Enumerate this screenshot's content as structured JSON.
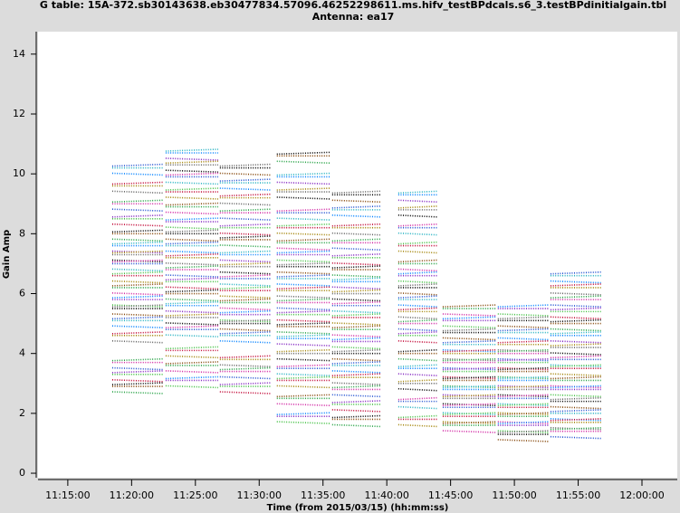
{
  "chart_data": {
    "type": "scatter",
    "title": "G table: 15A-372.sb30143638.eb30477834.57096.46252298611.ms.hifv_testBPdcals.s6_3.testBPdinitialgain.tbl",
    "subtitle": "Antenna: ea17",
    "xlabel": "Time (from 2015/03/15) (hh:mm:ss)",
    "ylabel": "Gain Amp",
    "xlim": [
      40360,
      43366
    ],
    "ylim": [
      -0.15,
      14.75
    ],
    "xticks": [
      {
        "value": 40500,
        "label": "11:15:00"
      },
      {
        "value": 40800,
        "label": "11:20:00"
      },
      {
        "value": 41100,
        "label": "11:25:00"
      },
      {
        "value": 41400,
        "label": "11:30:00"
      },
      {
        "value": 41700,
        "label": "11:35:00"
      },
      {
        "value": 42000,
        "label": "11:40:00"
      },
      {
        "value": 42300,
        "label": "11:45:00"
      },
      {
        "value": 42600,
        "label": "11:50:00"
      },
      {
        "value": 42900,
        "label": "11:55:00"
      },
      {
        "value": 43200,
        "label": "12:00:00"
      }
    ],
    "yticks": [
      0,
      2,
      4,
      6,
      8,
      10,
      12,
      14
    ],
    "colors": [
      "#1f4fd0",
      "#c00030",
      "#20a040",
      "#8020c0",
      "#000000",
      "#20b0c0",
      "#a08000",
      "#d020a0",
      "#40c040",
      "#804000",
      "#0080ff",
      "#606060"
    ],
    "scans": [
      {
        "x": [
          40709,
          40951
        ],
        "levels": [
          10.2,
          9.6,
          9.0,
          8.5,
          8.0,
          7.6,
          7.3,
          7.0,
          6.6,
          6.2,
          5.8,
          5.5,
          5.1,
          4.6,
          3.7,
          3.3,
          2.9
        ]
      },
      {
        "x": [
          40960,
          41207
        ],
        "levels": [
          10.7,
          10.3,
          9.9,
          9.4,
          8.9,
          8.4,
          8.0,
          7.6,
          7.2,
          6.8,
          6.4,
          6.0,
          5.6,
          5.2,
          4.8,
          4.1,
          3.6,
          3.1
        ]
      },
      {
        "x": [
          41215,
          41454
        ],
        "levels": [
          10.2,
          9.7,
          9.2,
          8.7,
          8.2,
          7.8,
          7.3,
          6.9,
          6.5,
          6.1,
          5.7,
          5.3,
          5.0,
          4.6,
          3.8,
          3.4,
          2.9
        ]
      },
      {
        "x": [
          41483,
          41735
        ],
        "levels": [
          10.6,
          9.9,
          9.4,
          8.7,
          8.2,
          7.7,
          7.3,
          6.9,
          6.5,
          6.1,
          5.7,
          5.3,
          4.9,
          4.5,
          4.0,
          3.5,
          3.1,
          2.5,
          1.9
        ]
      },
      {
        "x": [
          41743,
          41969
        ],
        "levels": [
          9.3,
          8.8,
          8.2,
          7.7,
          7.2,
          6.8,
          6.4,
          6.0,
          5.6,
          5.2,
          4.8,
          4.4,
          4.0,
          3.6,
          3.2,
          2.8,
          2.3,
          1.8
        ]
      },
      {
        "x": [
          42054,
          42238
        ],
        "levels": [
          9.3,
          8.8,
          8.2,
          7.6,
          7.0,
          6.6,
          6.2,
          5.8,
          5.4,
          5.0,
          4.6,
          4.0,
          3.5,
          3.0,
          2.4,
          1.8
        ]
      },
      {
        "x": [
          42263,
          42514
        ],
        "levels": [
          5.5,
          5.1,
          4.7,
          4.3,
          4.0,
          3.7,
          3.4,
          3.1,
          2.8,
          2.5,
          2.2,
          1.9,
          1.6
        ]
      },
      {
        "x": [
          42522,
          42761
        ],
        "levels": [
          5.5,
          5.1,
          4.7,
          4.3,
          4.0,
          3.7,
          3.4,
          3.1,
          2.8,
          2.5,
          2.2,
          1.9,
          1.6,
          1.3
        ]
      },
      {
        "x": [
          42770,
          43012
        ],
        "levels": [
          6.6,
          6.2,
          5.8,
          5.4,
          5.0,
          4.6,
          4.2,
          3.8,
          3.5,
          3.1,
          2.8,
          2.4,
          2.0,
          1.7,
          1.4
        ]
      }
    ]
  }
}
